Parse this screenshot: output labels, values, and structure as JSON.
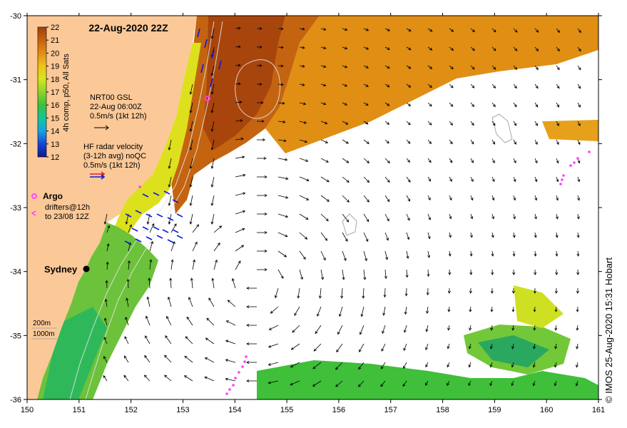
{
  "title": "22-Aug-2020 22Z",
  "axes": {
    "x_ticks": [
      "150",
      "151",
      "152",
      "153",
      "154",
      "155",
      "156",
      "157",
      "158",
      "159",
      "160",
      "161"
    ],
    "y_ticks": [
      "-30",
      "-31",
      "-32",
      "-33",
      "-34",
      "-35",
      "-36"
    ],
    "lon_range": [
      150,
      161
    ],
    "lat_range": [
      -36,
      -30
    ]
  },
  "colorbar": {
    "label": "4h comp, p50, All Sats",
    "ticks": [
      "22",
      "21",
      "20",
      "19",
      "18",
      "17",
      "16",
      "15",
      "14",
      "13",
      "12"
    ],
    "range": [
      12,
      22
    ],
    "colors": [
      "#0b1a8c",
      "#1646d6",
      "#15a3e0",
      "#16c49a",
      "#38c23b",
      "#8fd22b",
      "#d4e61c",
      "#f1c21a",
      "#e08e14",
      "#c6620f",
      "#a0410c"
    ]
  },
  "legend": {
    "gsl_title": "NRT00 GSL",
    "gsl_time": "22-Aug 06:00Z",
    "gsl_scale": "0.5m/s (1kt 12h)",
    "hf_title": "HF radar velocity",
    "hf_avg": "(3-12h avg) noQC",
    "hf_scale": "0.5m/s (1kt 12h)",
    "argo_label": "Argo",
    "drifters_label": "drifters@12h",
    "drifters_range": "to 23/08 12Z",
    "depth_200": "200m",
    "depth_1000": "1000m"
  },
  "places": [
    {
      "name": "Sydney",
      "lon": 151.2,
      "lat": -33.87
    }
  ],
  "argo_float": {
    "lon": 153.5,
    "lat": -31.1
  },
  "credit": "© IMOS 25-Aug-2020 15:31 Hobart",
  "colors": {
    "land": "#fbc898",
    "hf_vector": "#0a1adc",
    "argo": "#ff3cff",
    "gsl_vector": "#000000"
  }
}
